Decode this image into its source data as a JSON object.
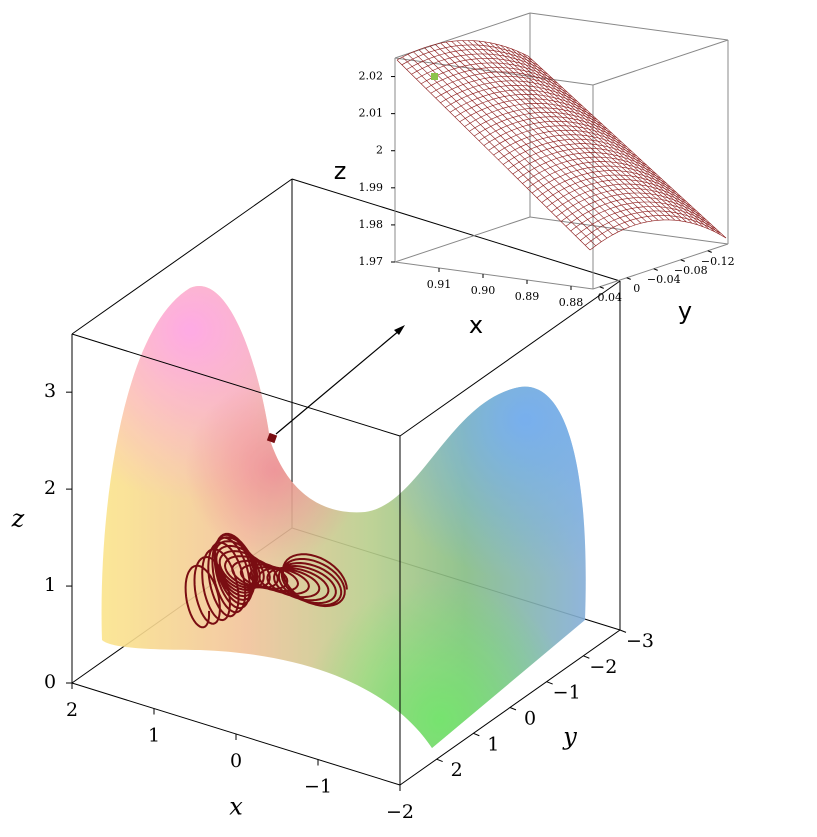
{
  "chart_data": [
    {
      "type": "surface3d",
      "xlabel": "x",
      "ylabel": "y",
      "zlabel": "z",
      "xlim": [
        -2,
        2
      ],
      "ylim": [
        -3,
        3
      ],
      "zlim": [
        0,
        3.6
      ],
      "xticks": [
        2,
        1,
        0,
        {
          "value": -1,
          "label": "−1"
        },
        {
          "value": -2,
          "label": "−2"
        }
      ],
      "yticks": [
        2,
        1,
        0,
        {
          "value": -1,
          "label": "−1"
        },
        {
          "value": -2,
          "label": "−2"
        },
        {
          "value": -3,
          "label": "−3"
        }
      ],
      "zticks": [
        0,
        1,
        2,
        3
      ]
    },
    {
      "type": "surface3d",
      "xlabel": "x",
      "ylabel": "y",
      "zlabel": "z",
      "xlim": [
        0.875,
        0.92
      ],
      "ylim": [
        -0.15,
        0.05
      ],
      "zlim": [
        1.97,
        2.025
      ],
      "xticks": [
        0.91,
        {
          "value": 0.9,
          "label": "0.90"
        },
        0.89,
        0.88
      ],
      "yticks": [
        0.04,
        0,
        {
          "value": -0.04,
          "label": "−0.04"
        },
        {
          "value": -0.08,
          "label": "−0.08"
        },
        {
          "value": -0.12,
          "label": "−0.12"
        }
      ],
      "zticks": [
        1.97,
        1.98,
        1.99,
        2,
        2.01,
        2.02
      ]
    }
  ]
}
